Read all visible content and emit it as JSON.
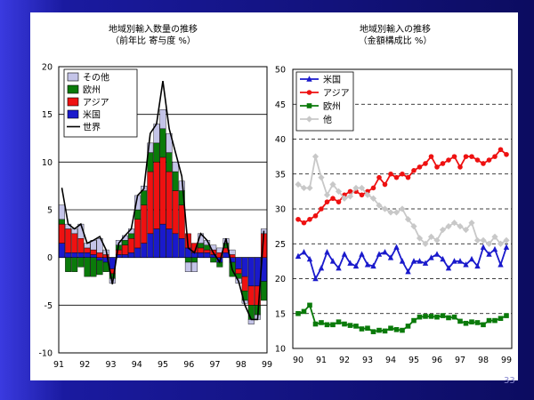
{
  "page_number": "33",
  "colors": {
    "background": "#101078",
    "panel": "#ffffff"
  },
  "chart_data": [
    {
      "type": "bar",
      "stacked": true,
      "title": "地域別輸入数量の推移",
      "subtitle": "（前年比 寄与度 %）",
      "xlabel": "",
      "ylabel": "",
      "ylim": [
        -10,
        20
      ],
      "yticks": [
        "20",
        "15",
        "10",
        "5",
        "0",
        "-5",
        "-10"
      ],
      "xticks": [
        "91",
        "92",
        "93",
        "94",
        "95",
        "96",
        "97",
        "98",
        "99"
      ],
      "x_range": [
        1991,
        1999
      ],
      "grid": "horizontal",
      "legend_position": "top-left",
      "quarters": [
        "91Q1",
        "91Q2",
        "91Q3",
        "91Q4",
        "92Q1",
        "92Q2",
        "92Q3",
        "92Q4",
        "93Q1",
        "93Q2",
        "93Q3",
        "93Q4",
        "94Q1",
        "94Q2",
        "94Q3",
        "94Q4",
        "95Q1",
        "95Q2",
        "95Q3",
        "95Q4",
        "96Q1",
        "96Q2",
        "96Q3",
        "96Q4",
        "97Q1",
        "97Q2",
        "97Q3",
        "97Q4",
        "98Q1",
        "98Q2",
        "98Q3",
        "98Q4",
        "99Q1"
      ],
      "series": [
        {
          "name": "米国",
          "color": "#1a1acc",
          "values": [
            1.5,
            0.5,
            0.5,
            0.5,
            0.5,
            0.3,
            -0.3,
            -0.5,
            -1.2,
            0.3,
            0.3,
            0.5,
            1.0,
            1.5,
            2.5,
            3.0,
            3.5,
            3.0,
            2.5,
            2.0,
            1.0,
            0.5,
            0.5,
            0.5,
            0.3,
            -0.5,
            0.5,
            -0.5,
            -1.2,
            -2.0,
            -3.0,
            -3.0,
            -2.5
          ]
        },
        {
          "name": "アジア",
          "color": "#ee1111",
          "values": [
            2.0,
            2.5,
            2.0,
            1.5,
            0.5,
            0.5,
            0.5,
            0.3,
            -0.5,
            0.5,
            1.0,
            1.5,
            3.0,
            4.0,
            6.5,
            7.0,
            7.0,
            6.0,
            4.5,
            3.5,
            1.5,
            1.0,
            0.5,
            0.3,
            0.5,
            0.5,
            0.5,
            0.3,
            -0.5,
            -1.5,
            -2.0,
            -2.0,
            2.5
          ]
        },
        {
          "name": "欧州",
          "color": "#0a7a0a",
          "values": [
            0.5,
            -1.5,
            -1.5,
            -1.0,
            -2.0,
            -2.0,
            -1.5,
            -1.0,
            -0.5,
            0.5,
            0.5,
            0.5,
            1.0,
            1.5,
            2.0,
            2.0,
            3.0,
            2.0,
            2.0,
            1.5,
            -0.5,
            -0.5,
            0.5,
            0.5,
            -0.5,
            -0.5,
            0.5,
            -1.5,
            -0.5,
            -1.0,
            -1.5,
            -1.0,
            -2.0
          ]
        },
        {
          "name": "その他",
          "color": "#c4c4e8",
          "values": [
            1.5,
            0.5,
            0.5,
            1.5,
            0.5,
            1.0,
            1.5,
            0.5,
            -0.5,
            0.5,
            0.5,
            0.5,
            1.5,
            0.5,
            1.0,
            2.0,
            2.0,
            2.0,
            1.0,
            1.0,
            -1.0,
            -1.0,
            1.0,
            0.5,
            0.5,
            0.5,
            0.5,
            0.5,
            -0.5,
            -0.3,
            -0.5,
            -0.5,
            0.5
          ]
        }
      ],
      "line": {
        "name": "世界",
        "color": "#000000",
        "values": [
          7.3,
          3.5,
          3.0,
          3.5,
          1.5,
          1.8,
          2.2,
          0.8,
          -2.8,
          1.5,
          2.3,
          3.0,
          6.5,
          7.2,
          13.0,
          14.0,
          18.5,
          13.5,
          11.0,
          8.5,
          1.0,
          0.5,
          2.5,
          1.8,
          0.5,
          -0.5,
          2.0,
          -1.3,
          -2.5,
          -5.0,
          -6.5,
          -6.5,
          2.8
        ]
      }
    },
    {
      "type": "line",
      "title": "地域別輸入の推移",
      "subtitle": "（金額構成比 %）",
      "xlabel": "",
      "ylabel": "",
      "ylim": [
        10,
        50
      ],
      "yticks": [
        "50",
        "45",
        "40",
        "35",
        "30",
        "25",
        "20",
        "15",
        "10"
      ],
      "xticks": [
        "90",
        "91",
        "92",
        "93",
        "94",
        "95",
        "96",
        "97",
        "98",
        "99"
      ],
      "x_range": [
        1990,
        1999
      ],
      "grid": "horizontal-dashed",
      "legend_position": "top-left",
      "x": [
        1990.0,
        1990.25,
        1990.5,
        1990.75,
        1991.0,
        1991.25,
        1991.5,
        1991.75,
        1992.0,
        1992.25,
        1992.5,
        1992.75,
        1993.0,
        1993.25,
        1993.5,
        1993.75,
        1994.0,
        1994.25,
        1994.5,
        1994.75,
        1995.0,
        1995.25,
        1995.5,
        1995.75,
        1996.0,
        1996.25,
        1996.5,
        1996.75,
        1997.0,
        1997.25,
        1997.5,
        1997.75,
        1998.0,
        1998.25,
        1998.5,
        1998.75,
        1999.0
      ],
      "series": [
        {
          "name": "米国",
          "color": "#1a1acc",
          "marker": "triangle",
          "values": [
            23.2,
            23.8,
            22.8,
            20.0,
            21.5,
            23.8,
            22.5,
            21.5,
            23.5,
            22.2,
            21.8,
            23.5,
            22.0,
            21.8,
            23.5,
            23.8,
            23.0,
            24.5,
            22.5,
            21.0,
            22.5,
            22.5,
            22.2,
            23.0,
            23.5,
            22.8,
            21.5,
            22.5,
            22.5,
            22.0,
            22.8,
            21.8,
            24.5,
            23.5,
            24.2,
            22.0,
            24.5
          ]
        },
        {
          "name": "アジア",
          "color": "#ee1111",
          "marker": "circle",
          "values": [
            28.5,
            28.0,
            28.5,
            29.0,
            30.0,
            31.0,
            31.5,
            31.0,
            32.0,
            32.5,
            32.5,
            32.0,
            32.5,
            33.0,
            34.5,
            33.5,
            35.0,
            34.5,
            35.0,
            34.5,
            35.5,
            36.0,
            36.5,
            37.5,
            36.0,
            36.5,
            37.0,
            37.5,
            36.0,
            37.5,
            37.5,
            37.0,
            36.5,
            37.0,
            37.5,
            38.5,
            37.8
          ]
        },
        {
          "name": "欧州",
          "color": "#0a7a0a",
          "marker": "square",
          "values": [
            15.0,
            15.3,
            16.2,
            13.5,
            13.7,
            13.4,
            13.4,
            13.8,
            13.5,
            13.3,
            13.2,
            12.8,
            12.9,
            12.4,
            12.6,
            12.5,
            12.9,
            12.7,
            12.6,
            13.2,
            14.0,
            14.5,
            14.6,
            14.6,
            14.5,
            14.7,
            14.4,
            14.5,
            13.9,
            13.6,
            13.8,
            13.7,
            13.4,
            14.0,
            14.0,
            14.3,
            14.7
          ]
        },
        {
          "name": "他",
          "color": "#c8c8c8",
          "marker": "diamond",
          "values": [
            33.5,
            33.0,
            33.0,
            37.5,
            34.5,
            32.0,
            33.5,
            32.5,
            31.5,
            31.8,
            33.0,
            33.0,
            32.0,
            31.5,
            30.5,
            30.0,
            29.5,
            29.5,
            30.0,
            28.5,
            27.5,
            25.8,
            25.0,
            26.0,
            25.5,
            27.0,
            27.5,
            28.0,
            27.5,
            27.0,
            28.0,
            25.5,
            25.5,
            25.0,
            26.0,
            25.0,
            25.5
          ]
        }
      ]
    }
  ]
}
